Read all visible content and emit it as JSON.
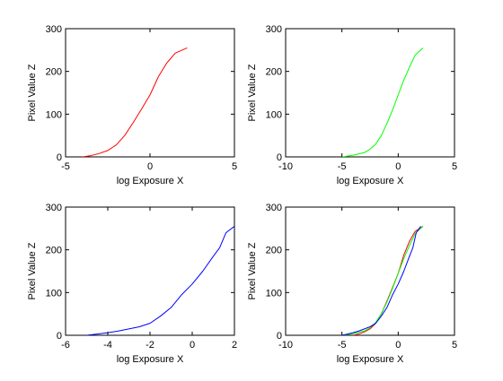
{
  "chart_data": [
    {
      "type": "line",
      "xlabel": "log Exposure X",
      "ylabel": "Pixel Value Z",
      "xlim": [
        -5,
        5
      ],
      "ylim": [
        0,
        300
      ],
      "xticks": [
        -5,
        0,
        5
      ],
      "yticks": [
        0,
        100,
        200,
        300
      ],
      "grid": false,
      "series": [
        {
          "color": "#ff0000",
          "points": [
            [
              -4.0,
              0
            ],
            [
              -3.5,
              3
            ],
            [
              -3.0,
              8
            ],
            [
              -2.5,
              15
            ],
            [
              -2.0,
              28
            ],
            [
              -1.5,
              50
            ],
            [
              -1.0,
              80
            ],
            [
              -0.5,
              112
            ],
            [
              0.0,
              145
            ],
            [
              0.5,
              188
            ],
            [
              1.0,
              220
            ],
            [
              1.5,
              243
            ],
            [
              2.2,
              255
            ]
          ]
        }
      ]
    },
    {
      "type": "line",
      "xlabel": "log Exposure X",
      "ylabel": "Pixel Value Z",
      "xlim": [
        -10,
        5
      ],
      "ylim": [
        0,
        300
      ],
      "xticks": [
        -10,
        -5,
        0,
        5
      ],
      "yticks": [
        0,
        100,
        200,
        300
      ],
      "grid": false,
      "series": [
        {
          "color": "#00ff00",
          "points": [
            [
              -5.0,
              0
            ],
            [
              -4.0,
              4
            ],
            [
              -3.0,
              10
            ],
            [
              -2.5,
              18
            ],
            [
              -2.0,
              30
            ],
            [
              -1.5,
              50
            ],
            [
              -1.0,
              78
            ],
            [
              -0.5,
              110
            ],
            [
              0.0,
              145
            ],
            [
              0.5,
              180
            ],
            [
              1.0,
              210
            ],
            [
              1.5,
              238
            ],
            [
              2.2,
              255
            ]
          ]
        }
      ]
    },
    {
      "type": "line",
      "xlabel": "log Exposure X",
      "ylabel": "Pixel Value Z",
      "xlim": [
        -6,
        2
      ],
      "ylim": [
        0,
        300
      ],
      "xticks": [
        -6,
        -4,
        -2,
        0,
        2
      ],
      "yticks": [
        0,
        100,
        200,
        300
      ],
      "grid": false,
      "series": [
        {
          "color": "#0000ff",
          "points": [
            [
              -5.0,
              0
            ],
            [
              -4.5,
              3
            ],
            [
              -4.0,
              6
            ],
            [
              -3.5,
              10
            ],
            [
              -3.0,
              15
            ],
            [
              -2.5,
              20
            ],
            [
              -2.0,
              28
            ],
            [
              -1.5,
              45
            ],
            [
              -1.0,
              65
            ],
            [
              -0.5,
              95
            ],
            [
              0.0,
              120
            ],
            [
              0.5,
              150
            ],
            [
              1.0,
              185
            ],
            [
              1.3,
              205
            ],
            [
              1.6,
              240
            ],
            [
              2.0,
              255
            ]
          ]
        }
      ]
    },
    {
      "type": "line",
      "xlabel": "log Exposure X",
      "ylabel": "Pixel Value Z",
      "xlim": [
        -10,
        5
      ],
      "ylim": [
        0,
        300
      ],
      "xticks": [
        -10,
        -5,
        0,
        5
      ],
      "yticks": [
        0,
        100,
        200,
        300
      ],
      "grid": false,
      "series": [
        {
          "color": "#ff0000",
          "points": [
            [
              -4.0,
              0
            ],
            [
              -3.5,
              3
            ],
            [
              -3.0,
              8
            ],
            [
              -2.5,
              15
            ],
            [
              -2.0,
              28
            ],
            [
              -1.5,
              50
            ],
            [
              -1.0,
              80
            ],
            [
              -0.5,
              112
            ],
            [
              0.0,
              145
            ],
            [
              0.5,
              188
            ],
            [
              1.0,
              220
            ],
            [
              1.5,
              243
            ],
            [
              2.2,
              255
            ]
          ]
        },
        {
          "color": "#00ff00",
          "points": [
            [
              -5.0,
              0
            ],
            [
              -4.0,
              4
            ],
            [
              -3.0,
              10
            ],
            [
              -2.5,
              18
            ],
            [
              -2.0,
              30
            ],
            [
              -1.5,
              50
            ],
            [
              -1.0,
              78
            ],
            [
              -0.5,
              110
            ],
            [
              0.0,
              145
            ],
            [
              0.5,
              180
            ],
            [
              1.0,
              210
            ],
            [
              1.5,
              238
            ],
            [
              2.2,
              255
            ]
          ]
        },
        {
          "color": "#0000ff",
          "points": [
            [
              -5.0,
              0
            ],
            [
              -4.5,
              3
            ],
            [
              -4.0,
              6
            ],
            [
              -3.5,
              10
            ],
            [
              -3.0,
              15
            ],
            [
              -2.5,
              20
            ],
            [
              -2.0,
              28
            ],
            [
              -1.5,
              45
            ],
            [
              -1.0,
              65
            ],
            [
              -0.5,
              95
            ],
            [
              0.0,
              120
            ],
            [
              0.5,
              150
            ],
            [
              1.0,
              185
            ],
            [
              1.3,
              205
            ],
            [
              1.6,
              240
            ],
            [
              2.0,
              255
            ]
          ]
        }
      ]
    }
  ]
}
